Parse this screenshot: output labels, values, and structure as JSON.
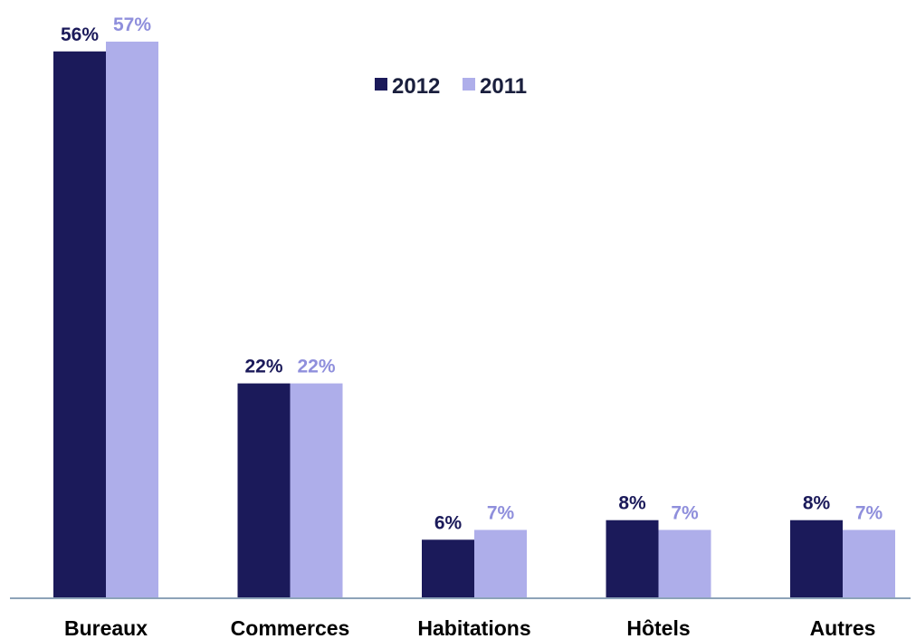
{
  "chart_data": {
    "type": "bar",
    "categories": [
      "Bureaux",
      "Commerces",
      "Habitations",
      "Hôtels",
      "Autres"
    ],
    "series": [
      {
        "name": "2012",
        "values": [
          56,
          22,
          6,
          8,
          8
        ],
        "labels": [
          "56%",
          "22%",
          "6%",
          "8%",
          "8%"
        ],
        "color": "#1b1a5a",
        "label_color": "#1b1a5a"
      },
      {
        "name": "2011",
        "values": [
          57,
          22,
          7,
          7,
          7
        ],
        "labels": [
          "57%",
          "22%",
          "7%",
          "7%",
          "7%"
        ],
        "color": "#aeaeea",
        "label_color": "#8f8fdc"
      }
    ],
    "title": "",
    "xlabel": "",
    "ylabel": "",
    "ylim": [
      0,
      57
    ],
    "grid": false,
    "legend_position": "top-center"
  }
}
